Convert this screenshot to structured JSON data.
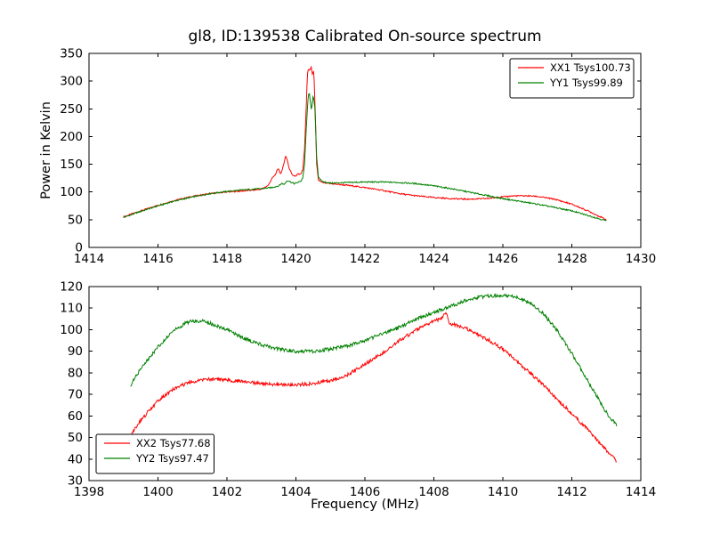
{
  "figure": {
    "title": "gl8, ID:139538 Calibrated On-source spectrum",
    "xlabel": "Frequency (MHz)",
    "ylabel": "Power in Kelvin",
    "background": "#ffffff",
    "axis_color": "#000000",
    "legend_border": "#000000",
    "legend_fill": "#ffffff"
  },
  "chart_data": [
    {
      "type": "line",
      "xlim": [
        1414,
        1430
      ],
      "ylim": [
        0,
        350
      ],
      "xticks": [
        1414,
        1416,
        1418,
        1420,
        1422,
        1424,
        1426,
        1428,
        1430
      ],
      "yticks": [
        0,
        50,
        100,
        150,
        200,
        250,
        300,
        350
      ],
      "grid": false,
      "legend": {
        "position": "top-right"
      },
      "series": [
        {
          "name": "XX1 Tsys100.73",
          "color": "#ff0000",
          "noise": 1.2,
          "points": [
            [
              1415.0,
              55
            ],
            [
              1415.5,
              66
            ],
            [
              1416.0,
              76
            ],
            [
              1416.5,
              85
            ],
            [
              1417.0,
              92
            ],
            [
              1417.5,
              97
            ],
            [
              1418.0,
              100
            ],
            [
              1418.5,
              102
            ],
            [
              1419.0,
              105
            ],
            [
              1419.2,
              112
            ],
            [
              1419.3,
              124
            ],
            [
              1419.4,
              131
            ],
            [
              1419.45,
              138
            ],
            [
              1419.5,
              142
            ],
            [
              1419.55,
              133
            ],
            [
              1419.6,
              138
            ],
            [
              1419.65,
              152
            ],
            [
              1419.7,
              165
            ],
            [
              1419.75,
              158
            ],
            [
              1419.8,
              143
            ],
            [
              1419.9,
              131
            ],
            [
              1420.0,
              128
            ],
            [
              1420.05,
              134
            ],
            [
              1420.1,
              131
            ],
            [
              1420.15,
              133
            ],
            [
              1420.2,
              141
            ],
            [
              1420.25,
              178
            ],
            [
              1420.3,
              255
            ],
            [
              1420.33,
              310
            ],
            [
              1420.36,
              323
            ],
            [
              1420.4,
              318
            ],
            [
              1420.44,
              326
            ],
            [
              1420.48,
              312
            ],
            [
              1420.52,
              318
            ],
            [
              1420.56,
              245
            ],
            [
              1420.6,
              150
            ],
            [
              1420.65,
              122
            ],
            [
              1420.75,
              117
            ],
            [
              1421.0,
              115
            ],
            [
              1421.5,
              112
            ],
            [
              1422.0,
              108
            ],
            [
              1422.5,
              103
            ],
            [
              1423.0,
              97
            ],
            [
              1423.5,
              93
            ],
            [
              1424.0,
              90
            ],
            [
              1424.5,
              88
            ],
            [
              1425.0,
              87
            ],
            [
              1425.5,
              88
            ],
            [
              1426.0,
              91
            ],
            [
              1426.3,
              93
            ],
            [
              1426.7,
              93
            ],
            [
              1427.0,
              92
            ],
            [
              1427.5,
              87
            ],
            [
              1428.0,
              78
            ],
            [
              1428.5,
              65
            ],
            [
              1429.0,
              50
            ]
          ]
        },
        {
          "name": "YY1 Tsys99.89",
          "color": "#008000",
          "noise": 1.2,
          "points": [
            [
              1415.0,
              54
            ],
            [
              1415.5,
              65
            ],
            [
              1416.0,
              75
            ],
            [
              1416.5,
              84
            ],
            [
              1417.0,
              91
            ],
            [
              1417.5,
              97
            ],
            [
              1418.0,
              101
            ],
            [
              1418.5,
              104
            ],
            [
              1419.0,
              106
            ],
            [
              1419.3,
              108
            ],
            [
              1419.5,
              111
            ],
            [
              1419.6,
              116
            ],
            [
              1419.65,
              113
            ],
            [
              1419.75,
              121
            ],
            [
              1419.85,
              118
            ],
            [
              1419.95,
              115
            ],
            [
              1420.05,
              117
            ],
            [
              1420.15,
              120
            ],
            [
              1420.2,
              126
            ],
            [
              1420.25,
              150
            ],
            [
              1420.3,
              215
            ],
            [
              1420.35,
              268
            ],
            [
              1420.38,
              281
            ],
            [
              1420.42,
              262
            ],
            [
              1420.45,
              248
            ],
            [
              1420.5,
              274
            ],
            [
              1420.55,
              252
            ],
            [
              1420.6,
              165
            ],
            [
              1420.65,
              128
            ],
            [
              1420.75,
              119
            ],
            [
              1421.0,
              116
            ],
            [
              1421.5,
              117
            ],
            [
              1422.0,
              118
            ],
            [
              1422.5,
              118
            ],
            [
              1423.0,
              117
            ],
            [
              1423.5,
              115
            ],
            [
              1424.0,
              111
            ],
            [
              1424.5,
              106
            ],
            [
              1425.0,
              100
            ],
            [
              1425.5,
              94
            ],
            [
              1426.0,
              88
            ],
            [
              1426.5,
              83
            ],
            [
              1427.0,
              78
            ],
            [
              1427.5,
              72
            ],
            [
              1428.0,
              66
            ],
            [
              1428.5,
              57
            ],
            [
              1429.0,
              48
            ]
          ]
        }
      ]
    },
    {
      "type": "line",
      "xlim": [
        1398,
        1414
      ],
      "ylim": [
        30,
        120
      ],
      "xticks": [
        1398,
        1400,
        1402,
        1404,
        1406,
        1408,
        1410,
        1412,
        1414
      ],
      "yticks": [
        30,
        40,
        50,
        60,
        70,
        80,
        90,
        100,
        110,
        120
      ],
      "grid": false,
      "legend": {
        "position": "bottom-left"
      },
      "series": [
        {
          "name": "XX2 Tsys77.68",
          "color": "#ff0000",
          "noise": 0.8,
          "points": [
            [
              1399.2,
              51
            ],
            [
              1399.5,
              58
            ],
            [
              1400.0,
              67
            ],
            [
              1400.5,
              73
            ],
            [
              1401.0,
              76
            ],
            [
              1401.5,
              77
            ],
            [
              1402.0,
              76.5
            ],
            [
              1402.5,
              76
            ],
            [
              1403.0,
              75
            ],
            [
              1403.5,
              74.5
            ],
            [
              1404.0,
              74.5
            ],
            [
              1404.5,
              75
            ],
            [
              1405.0,
              76.5
            ],
            [
              1405.5,
              79
            ],
            [
              1406.0,
              84
            ],
            [
              1406.5,
              89
            ],
            [
              1407.0,
              95
            ],
            [
              1407.5,
              100
            ],
            [
              1408.0,
              104
            ],
            [
              1408.2,
              105
            ],
            [
              1408.35,
              108
            ],
            [
              1408.45,
              103
            ],
            [
              1408.8,
              101.5
            ],
            [
              1409.0,
              100
            ],
            [
              1409.5,
              96
            ],
            [
              1410.0,
              91
            ],
            [
              1410.5,
              84
            ],
            [
              1411.0,
              77
            ],
            [
              1411.5,
              69
            ],
            [
              1412.0,
              61
            ],
            [
              1412.5,
              53
            ],
            [
              1413.0,
              44
            ],
            [
              1413.3,
              39
            ]
          ]
        },
        {
          "name": "YY2 Tsys97.47",
          "color": "#008000",
          "noise": 0.8,
          "points": [
            [
              1399.2,
              74
            ],
            [
              1399.5,
              82
            ],
            [
              1400.0,
              92
            ],
            [
              1400.4,
              99
            ],
            [
              1400.8,
              103
            ],
            [
              1401.0,
              104
            ],
            [
              1401.3,
              104
            ],
            [
              1401.6,
              102.5
            ],
            [
              1402.0,
              100
            ],
            [
              1402.5,
              96
            ],
            [
              1403.0,
              93
            ],
            [
              1403.5,
              91
            ],
            [
              1404.0,
              90
            ],
            [
              1404.5,
              90
            ],
            [
              1405.0,
              91
            ],
            [
              1405.5,
              92.5
            ],
            [
              1406.0,
              95
            ],
            [
              1406.5,
              98
            ],
            [
              1407.0,
              101
            ],
            [
              1407.5,
              105
            ],
            [
              1408.0,
              108
            ],
            [
              1408.5,
              111
            ],
            [
              1409.0,
              114
            ],
            [
              1409.5,
              115.5
            ],
            [
              1410.0,
              116
            ],
            [
              1410.4,
              115
            ],
            [
              1410.8,
              112.5
            ],
            [
              1411.2,
              107
            ],
            [
              1411.6,
              99
            ],
            [
              1412.0,
              89
            ],
            [
              1412.4,
              78
            ],
            [
              1412.8,
              67
            ],
            [
              1413.1,
              59
            ],
            [
              1413.3,
              56
            ]
          ]
        }
      ]
    }
  ]
}
